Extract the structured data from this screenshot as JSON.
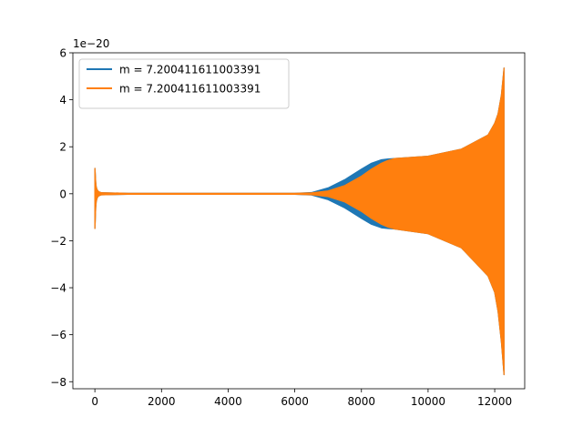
{
  "chart_data": {
    "type": "line",
    "title": "",
    "xlabel": "",
    "ylabel": "",
    "offset_text": "1e−20",
    "xlim": [
      -660,
      12900
    ],
    "ylim": [
      -8.3,
      6.0
    ],
    "xticks": [
      0,
      2000,
      4000,
      6000,
      8000,
      10000,
      12000
    ],
    "xtick_labels": [
      "0",
      "2000",
      "4000",
      "6000",
      "8000",
      "10000",
      "12000"
    ],
    "yticks": [
      -8,
      -6,
      -4,
      -2,
      0,
      2,
      4,
      6
    ],
    "ytick_labels": [
      "−8",
      "−6",
      "−4",
      "−2",
      "0",
      "2",
      "4",
      "6"
    ],
    "grid": false,
    "legend_position": "upper-left",
    "series": [
      {
        "name": "m = 7.200411611003391",
        "color": "#1f77b4",
        "envelope_x": [
          0,
          1000,
          3000,
          5000,
          6000,
          6500,
          7000,
          7500,
          8000,
          8300,
          8600,
          8800,
          9000,
          10000,
          11000,
          11800,
          12000,
          12100,
          12200,
          12280
        ],
        "envelope_upper": [
          0.05,
          0.02,
          0.02,
          0.02,
          0.02,
          0.05,
          0.25,
          0.6,
          1.05,
          1.3,
          1.45,
          1.48,
          1.5,
          1.6,
          1.9,
          2.5,
          3.0,
          3.4,
          4.2,
          5.35
        ],
        "envelope_lower": [
          -0.05,
          -0.02,
          -0.02,
          -0.02,
          -0.02,
          -0.05,
          -0.25,
          -0.6,
          -1.05,
          -1.3,
          -1.45,
          -1.48,
          -1.5,
          -1.7,
          -2.3,
          -3.5,
          -4.2,
          -5.0,
          -6.3,
          -7.7
        ]
      },
      {
        "name": "m = 7.200411611003391",
        "color": "#ff7f0e",
        "envelope_x": [
          0,
          1000,
          3000,
          5000,
          6000,
          6500,
          7000,
          7500,
          8000,
          8300,
          8600,
          8800,
          9000,
          10000,
          11000,
          11800,
          12000,
          12100,
          12200,
          12280
        ],
        "envelope_upper": [
          0.05,
          0.02,
          0.02,
          0.02,
          0.02,
          0.04,
          0.12,
          0.35,
          0.75,
          1.05,
          1.3,
          1.42,
          1.5,
          1.6,
          1.9,
          2.5,
          3.0,
          3.4,
          4.2,
          5.35
        ],
        "envelope_lower": [
          -0.05,
          -0.02,
          -0.02,
          -0.02,
          -0.02,
          -0.04,
          -0.12,
          -0.35,
          -0.75,
          -1.05,
          -1.3,
          -1.42,
          -1.5,
          -1.7,
          -2.3,
          -3.5,
          -4.2,
          -5.0,
          -6.3,
          -7.7
        ]
      }
    ],
    "initial_burst": {
      "x": [
        0,
        10,
        25,
        40,
        60,
        90,
        130,
        180
      ],
      "upper": [
        1.1,
        0.9,
        0.5,
        0.3,
        0.2,
        0.12,
        0.08,
        0.05
      ],
      "lower": [
        -1.5,
        -1.2,
        -0.6,
        -0.35,
        -0.22,
        -0.12,
        -0.08,
        -0.05
      ]
    }
  }
}
